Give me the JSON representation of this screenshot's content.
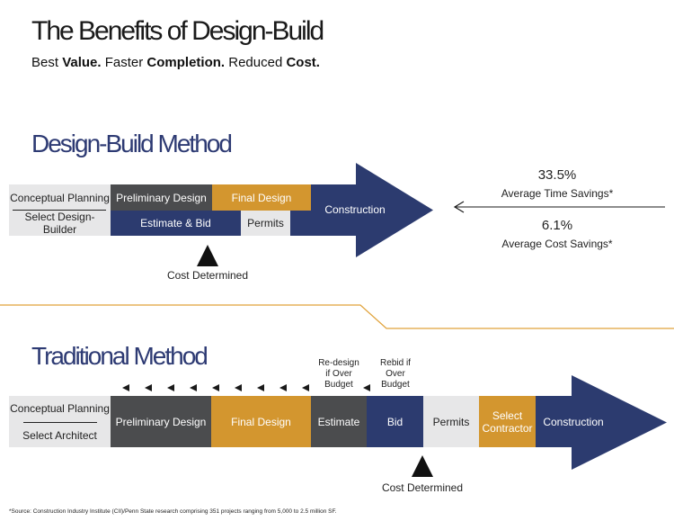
{
  "header": {
    "title": "The Benefits of Design-Build",
    "subtitle_parts": [
      {
        "text": "Best ",
        "bold": false
      },
      {
        "text": "Value.",
        "bold": true
      },
      {
        "text": " Faster ",
        "bold": false
      },
      {
        "text": "Completion.",
        "bold": true
      },
      {
        "text": " Reduced ",
        "bold": false
      },
      {
        "text": "Cost.",
        "bold": true
      }
    ]
  },
  "design_build": {
    "title": "Design-Build Method",
    "conceptual_planning": "Conceptual Planning",
    "select_builder": "Select Design-Builder",
    "preliminary_design": "Preliminary Design",
    "final_design": "Final Design",
    "estimate_bid": "Estimate & Bid",
    "permits": "Permits",
    "construction": "Construction",
    "cost_determined": "Cost Determined"
  },
  "savings": {
    "time_value": "33.5%",
    "time_label": "Average Time Savings*",
    "cost_value": "6.1%",
    "cost_label": "Average Cost Savings*"
  },
  "traditional": {
    "title": "Traditional Method",
    "conceptual_planning": "Conceptual Planning",
    "select_architect": "Select Architect",
    "preliminary_design": "Preliminary Design",
    "final_design": "Final Design",
    "estimate": "Estimate",
    "bid": "Bid",
    "permits": "Permits",
    "select_contractor": "Select Contractor",
    "construction": "Construction",
    "redesign_note": "Re-design if Over Budget",
    "rebid_note": "Rebid if Over Budget",
    "cost_determined": "Cost Determined"
  },
  "footnote": "*Source:  Construction Industry Institute (CII)/Penn State research comprising 351 projects ranging from 5,000 to 2.5 million SF.",
  "colors": {
    "navy": "#2c3b6f",
    "orange": "#d3962f",
    "dark_gray": "#4b4c4e",
    "light_gray": "#e7e7e8",
    "divider": "#e0a23a"
  }
}
